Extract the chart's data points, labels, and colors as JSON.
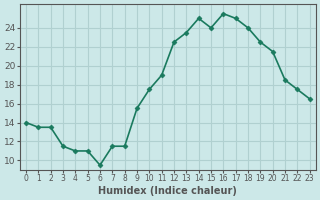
{
  "x": [
    0,
    1,
    2,
    3,
    4,
    5,
    6,
    7,
    8,
    9,
    10,
    11,
    12,
    13,
    14,
    15,
    16,
    17,
    18,
    19,
    20,
    21,
    22,
    23
  ],
  "y": [
    14.0,
    13.5,
    13.5,
    11.5,
    11.0,
    11.0,
    9.5,
    11.5,
    11.5,
    15.5,
    17.5,
    19.0,
    22.5,
    23.5,
    25.0,
    24.0,
    25.5,
    25.0,
    24.0,
    22.5,
    21.5,
    18.5,
    17.5,
    16.5
  ],
  "xlabel": "Humidex (Indice chaleur)",
  "ylabel": "",
  "title": "",
  "xlim": [
    -0.5,
    23.5
  ],
  "ylim": [
    9,
    26.5
  ],
  "yticks": [
    10,
    12,
    14,
    16,
    18,
    20,
    22,
    24
  ],
  "xtick_labels": [
    "0",
    "1",
    "2",
    "3",
    "4",
    "5",
    "6",
    "7",
    "8",
    "9",
    "10",
    "11",
    "12",
    "13",
    "14",
    "15",
    "16",
    "17",
    "18",
    "19",
    "20",
    "21",
    "22",
    "23"
  ],
  "line_color": "#1a7a5e",
  "marker_color": "#1a7a5e",
  "bg_color": "#cce8e8",
  "grid_color": "#b0d0d0",
  "axes_color": "#555555"
}
